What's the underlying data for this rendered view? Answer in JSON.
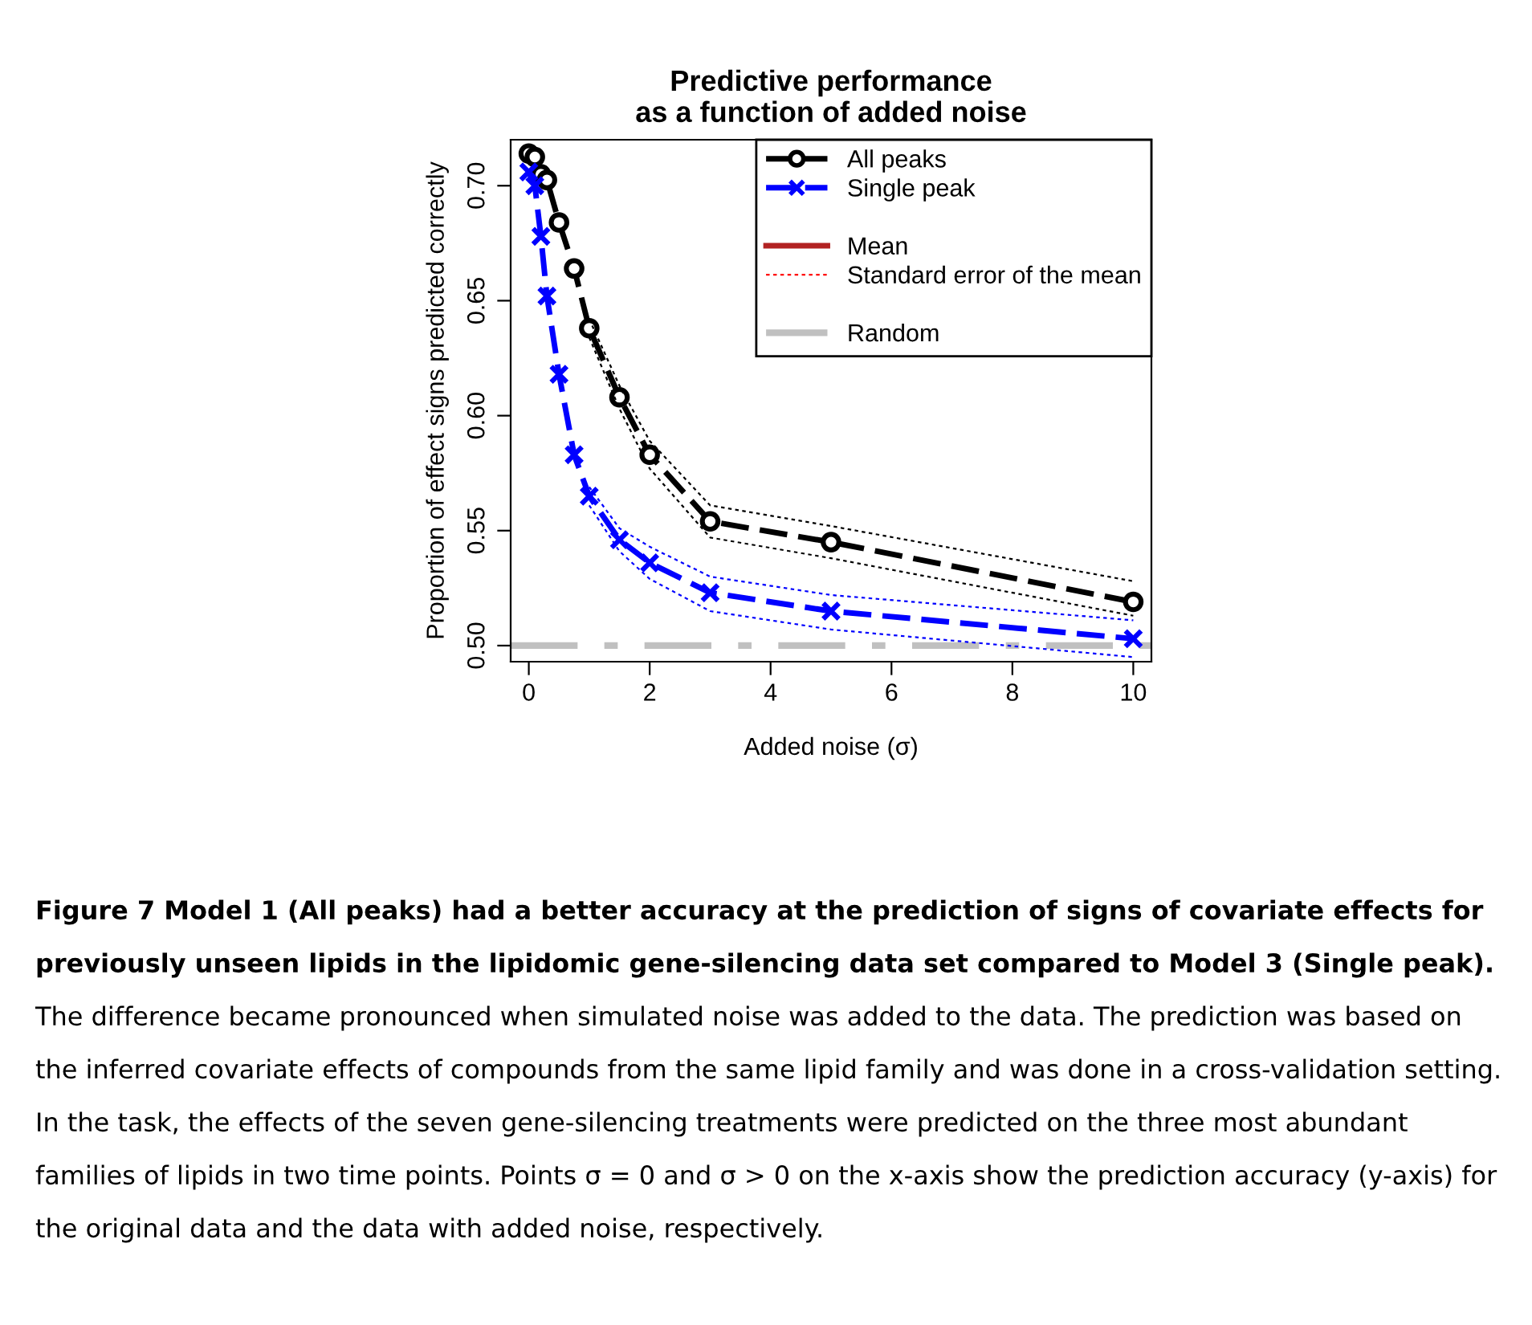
{
  "chart_data": {
    "type": "line",
    "title": "Predictive performance\nas a function of added noise",
    "xlabel": "Added noise (σ)",
    "ylabel": "Proportion of effect signs predicted correctly",
    "x": [
      0,
      0.1,
      0.2,
      0.3,
      0.5,
      0.75,
      1,
      1.5,
      2,
      3,
      5,
      10
    ],
    "series": [
      {
        "name": "All peaks",
        "color": "#000000",
        "marker": "circle",
        "line_style": "dashed",
        "values": [
          0.714,
          0.7125,
          0.705,
          0.7025,
          0.684,
          0.664,
          0.638,
          0.608,
          0.583,
          0.554,
          0.545,
          0.519
        ]
      },
      {
        "name": "Single peak",
        "color": "#0000ff",
        "marker": "cross",
        "line_style": "dashed",
        "values": [
          0.706,
          0.7,
          0.678,
          0.652,
          0.618,
          0.583,
          0.565,
          0.546,
          0.536,
          0.523,
          0.515,
          0.503
        ]
      },
      {
        "name": "Mean",
        "color": "#b22222",
        "marker": "none",
        "line_style": "solid",
        "values": [
          null,
          null,
          null,
          null,
          null,
          null,
          null,
          null,
          null,
          null,
          null,
          null
        ]
      },
      {
        "name": "Standard error of the mean",
        "color": "#ff0000",
        "marker": "none",
        "line_style": "dotted",
        "values": [
          null,
          null,
          null,
          null,
          null,
          null,
          null,
          null,
          null,
          null,
          null,
          null
        ]
      },
      {
        "color": "#000000",
        "marker": "none",
        "line_style": "dotted",
        "x": [
          1,
          1.5,
          2,
          3,
          5,
          10
        ],
        "values": [
          0.642,
          0.613,
          0.589,
          0.561,
          0.552,
          0.528
        ]
      },
      {
        "color": "#000000",
        "marker": "none",
        "line_style": "dotted",
        "x": [
          1,
          1.5,
          2,
          3,
          5,
          10
        ],
        "values": [
          0.634,
          0.603,
          0.577,
          0.547,
          0.538,
          0.513
        ]
      },
      {
        "color": "#0000ff",
        "marker": "none",
        "line_style": "dotted",
        "x": [
          1,
          1.5,
          2,
          3,
          5,
          10
        ],
        "values": [
          0.569,
          0.551,
          0.543,
          0.53,
          0.522,
          0.511
        ]
      },
      {
        "color": "#0000ff",
        "marker": "none",
        "line_style": "dotted",
        "x": [
          1,
          1.5,
          2,
          3,
          5,
          10
        ],
        "values": [
          0.561,
          0.541,
          0.529,
          0.515,
          0.507,
          0.495
        ]
      }
    ],
    "ref_lines": [
      {
        "axis": "y",
        "value": 0.5,
        "label": "Random",
        "color": "#c0c0c0",
        "line_style": "dashed"
      }
    ],
    "xlim": [
      -0.3,
      10.3
    ],
    "ylim": [
      0.493,
      0.72
    ],
    "xticks": [
      0,
      2,
      4,
      6,
      8,
      10
    ],
    "yticks": [
      {
        "value": 0.5,
        "label": "0.50"
      },
      0.55,
      {
        "value": 0.6,
        "label": "0.60"
      },
      0.65,
      {
        "value": 0.7,
        "label": "0.70"
      }
    ],
    "grid": false,
    "legend": "top right",
    "annotations": [
      "Figure 7 Model 1 (All peaks) had a better accuracy at the prediction of signs of covariate effects for previously unseen lipids in the lipidomic gene-silencing data set compared to Model 3 (Single peak).",
      "The difference became pronounced when simulated noise was added to the data. The prediction was based on the inferred covariate effects of compounds from the same lipid family and was done in a cross-validation setting. In the task, the effects of the seven gene-silencing treatments were predicted on the three most abundant families of lipids in two time points. Points σ = 0 and σ > 0 on the x-axis show the prediction accuracy (y-axis) for the original data and the data with added noise, respectively."
    ]
  }
}
